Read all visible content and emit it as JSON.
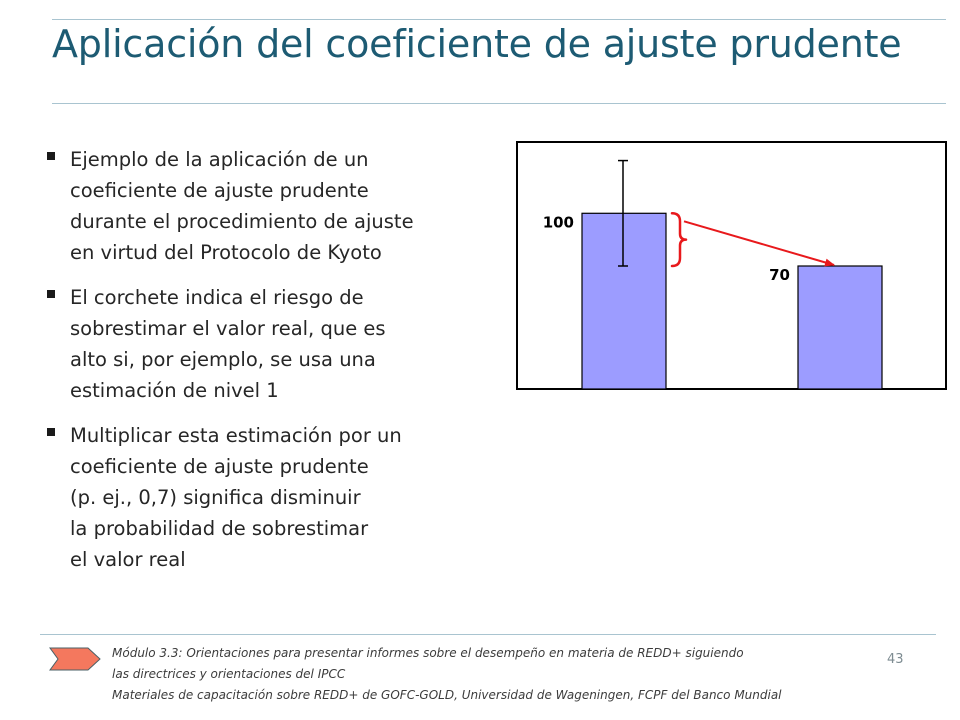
{
  "title": "Aplicación del coeficiente de ajuste prudente",
  "bullets": [
    {
      "lines": [
        "Ejemplo de la aplicación de un",
        "coeficiente de ajuste prudente",
        "durante el procedimiento de ajuste",
        "en virtud del Protocolo de Kyoto"
      ]
    },
    {
      "lines": [
        "El corchete indica el riesgo de",
        "sobrestimar el valor real, que es",
        "alto si, por ejemplo, se usa una",
        "estimación de nivel 1"
      ]
    },
    {
      "lines": [
        "Multiplicar esta estimación por un",
        "coeficiente de ajuste prudente",
        "(p. ej., 0,7) significa disminuir",
        "la probabilidad de sobrestimar",
        "el valor real"
      ]
    }
  ],
  "chart_data": {
    "type": "bar",
    "categories": [
      "",
      ""
    ],
    "values": [
      100,
      70
    ],
    "data_labels": [
      "100",
      "70"
    ],
    "error_bar": {
      "index": 0,
      "upper": 130,
      "lower": 70
    },
    "ylim": [
      0,
      140
    ],
    "bar_color": "#9c9cff",
    "arrow_color": "#e8191c",
    "bracket_color": "#e8191c",
    "grid": false,
    "annotation": "bracket beside first bar with red arrow pointing to top of second bar"
  },
  "footer": {
    "lines": [
      "Módulo 3.3: Orientaciones para presentar informes sobre el desempeño en materia de REDD+ siguiendo",
      "las directrices y orientaciones del IPCC",
      "Materiales de capacitación sobre REDD+ de GOFC-GOLD, Universidad de Wageningen, FCPF del Banco Mundial"
    ],
    "page_number": "43",
    "arrow_color": "#f4785e"
  }
}
